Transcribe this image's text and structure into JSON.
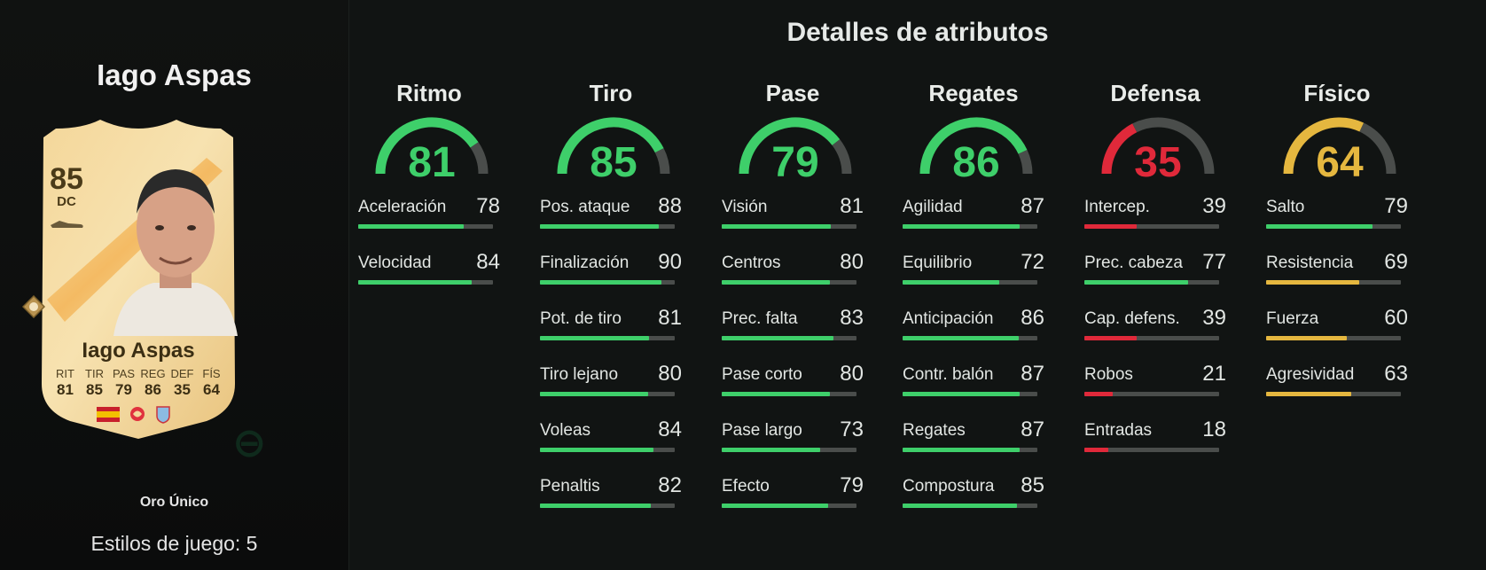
{
  "player": {
    "name": "Iago Aspas",
    "rating": "85",
    "position": "DC",
    "card_name": "Iago Aspas",
    "card_type": "Oro Único",
    "playstyles": "Estilos de juego: 5",
    "card_stat_labels": [
      "RIT",
      "TIR",
      "PAS",
      "REG",
      "DEF",
      "FÍS"
    ],
    "card_stat_values": [
      "81",
      "85",
      "79",
      "86",
      "35",
      "64"
    ]
  },
  "section_title": "Detalles de atributos",
  "colors": {
    "green": "#3ecf6a",
    "red": "#e0293a",
    "yellow": "#e5b73f",
    "track": "#4a4d4b"
  },
  "categories": [
    {
      "name": "Ritmo",
      "value": "81",
      "color": "#3ecf6a",
      "attrs": [
        {
          "name": "Aceleración",
          "value": "78"
        },
        {
          "name": "Velocidad",
          "value": "84"
        }
      ]
    },
    {
      "name": "Tiro",
      "value": "85",
      "color": "#3ecf6a",
      "attrs": [
        {
          "name": "Pos. ataque",
          "value": "88"
        },
        {
          "name": "Finalización",
          "value": "90"
        },
        {
          "name": "Pot. de tiro",
          "value": "81"
        },
        {
          "name": "Tiro lejano",
          "value": "80"
        },
        {
          "name": "Voleas",
          "value": "84"
        },
        {
          "name": "Penaltis",
          "value": "82"
        }
      ]
    },
    {
      "name": "Pase",
      "value": "79",
      "color": "#3ecf6a",
      "attrs": [
        {
          "name": "Visión",
          "value": "81"
        },
        {
          "name": "Centros",
          "value": "80"
        },
        {
          "name": "Prec. falta",
          "value": "83"
        },
        {
          "name": "Pase corto",
          "value": "80"
        },
        {
          "name": "Pase largo",
          "value": "73"
        },
        {
          "name": "Efecto",
          "value": "79"
        }
      ]
    },
    {
      "name": "Regates",
      "value": "86",
      "color": "#3ecf6a",
      "attrs": [
        {
          "name": "Agilidad",
          "value": "87"
        },
        {
          "name": "Equilibrio",
          "value": "72"
        },
        {
          "name": "Anticipación",
          "value": "86"
        },
        {
          "name": "Contr. balón",
          "value": "87"
        },
        {
          "name": "Regates",
          "value": "87"
        },
        {
          "name": "Compostura",
          "value": "85"
        }
      ]
    },
    {
      "name": "Defensa",
      "value": "35",
      "color": "#e0293a",
      "attrs": [
        {
          "name": "Intercep.",
          "value": "39"
        },
        {
          "name": "Prec. cabeza",
          "value": "77",
          "color": "#3ecf6a"
        },
        {
          "name": "Cap. defens.",
          "value": "39"
        },
        {
          "name": "Robos",
          "value": "21"
        },
        {
          "name": "Entradas",
          "value": "18"
        }
      ]
    },
    {
      "name": "Físico",
      "value": "64",
      "color": "#e5b73f",
      "attrs": [
        {
          "name": "Salto",
          "value": "79",
          "color": "#3ecf6a"
        },
        {
          "name": "Resistencia",
          "value": "69"
        },
        {
          "name": "Fuerza",
          "value": "60"
        },
        {
          "name": "Agresividad",
          "value": "63"
        }
      ]
    }
  ]
}
